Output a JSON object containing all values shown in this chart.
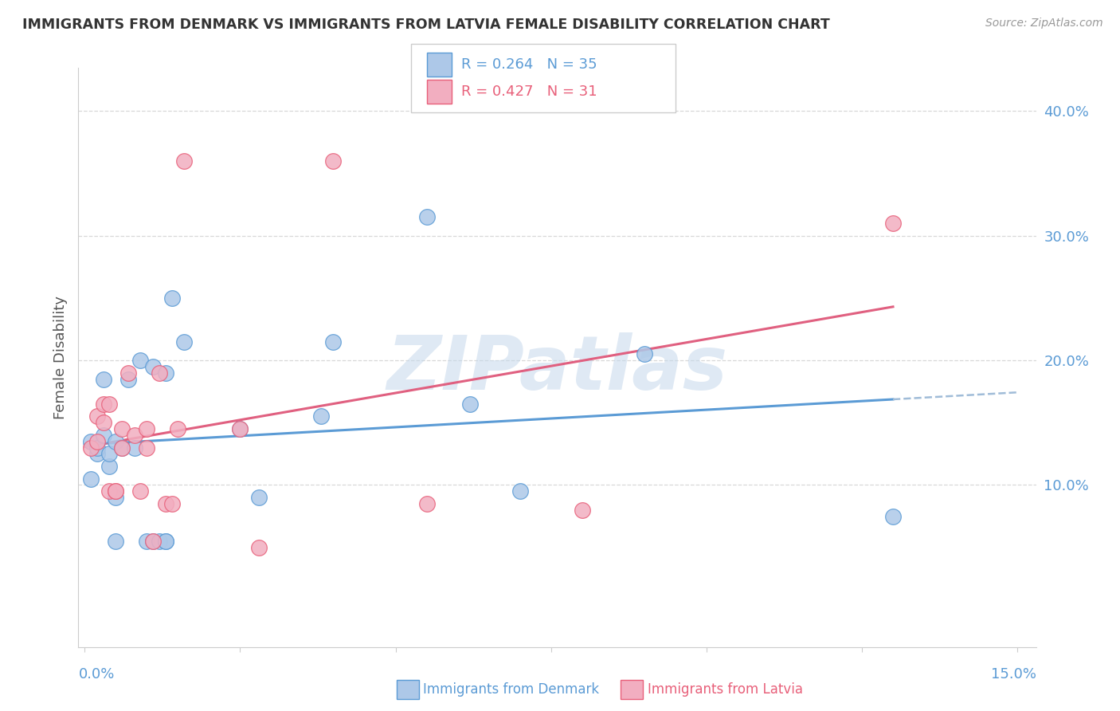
{
  "title": "IMMIGRANTS FROM DENMARK VS IMMIGRANTS FROM LATVIA FEMALE DISABILITY CORRELATION CHART",
  "source": "Source: ZipAtlas.com",
  "ylabel": "Female Disability",
  "ylim": [
    -0.03,
    0.435
  ],
  "xlim": [
    -0.001,
    0.153
  ],
  "yticks": [
    0.1,
    0.2,
    0.3,
    0.4
  ],
  "ytick_labels": [
    "10.0%",
    "20.0%",
    "30.0%",
    "40.0%"
  ],
  "xtick_left_label": "0.0%",
  "xtick_right_label": "15.0%",
  "legend1_R": "0.264",
  "legend1_N": "35",
  "legend2_R": "0.427",
  "legend2_N": "31",
  "denmark_color": "#adc8e8",
  "latvia_color": "#f2aec0",
  "denmark_edge_color": "#5b9bd5",
  "latvia_edge_color": "#e8607a",
  "denmark_line_color": "#5b9bd5",
  "latvia_line_color": "#e06080",
  "dashed_ext_color": "#a0bcd8",
  "watermark_color": "#c5d8ec",
  "grid_color": "#d8d8d8",
  "denmark_x": [
    0.001,
    0.001,
    0.002,
    0.002,
    0.003,
    0.003,
    0.004,
    0.004,
    0.005,
    0.005,
    0.005,
    0.006,
    0.007,
    0.008,
    0.009,
    0.01,
    0.011,
    0.011,
    0.012,
    0.013,
    0.013,
    0.013,
    0.014,
    0.016,
    0.025,
    0.028,
    0.038,
    0.04,
    0.055,
    0.062,
    0.07,
    0.09,
    0.13
  ],
  "denmark_y": [
    0.135,
    0.105,
    0.125,
    0.13,
    0.14,
    0.185,
    0.115,
    0.125,
    0.055,
    0.09,
    0.135,
    0.13,
    0.185,
    0.13,
    0.2,
    0.055,
    0.055,
    0.195,
    0.055,
    0.055,
    0.055,
    0.19,
    0.25,
    0.215,
    0.145,
    0.09,
    0.155,
    0.215,
    0.315,
    0.165,
    0.095,
    0.205,
    0.075
  ],
  "latvia_x": [
    0.001,
    0.002,
    0.002,
    0.003,
    0.003,
    0.004,
    0.004,
    0.005,
    0.005,
    0.006,
    0.006,
    0.007,
    0.008,
    0.009,
    0.01,
    0.01,
    0.011,
    0.012,
    0.013,
    0.014,
    0.015,
    0.016,
    0.025,
    0.028,
    0.04,
    0.055,
    0.08,
    0.13
  ],
  "latvia_y": [
    0.13,
    0.135,
    0.155,
    0.15,
    0.165,
    0.165,
    0.095,
    0.095,
    0.095,
    0.145,
    0.13,
    0.19,
    0.14,
    0.095,
    0.145,
    0.13,
    0.055,
    0.19,
    0.085,
    0.085,
    0.145,
    0.36,
    0.145,
    0.05,
    0.36,
    0.085,
    0.08,
    0.31
  ]
}
